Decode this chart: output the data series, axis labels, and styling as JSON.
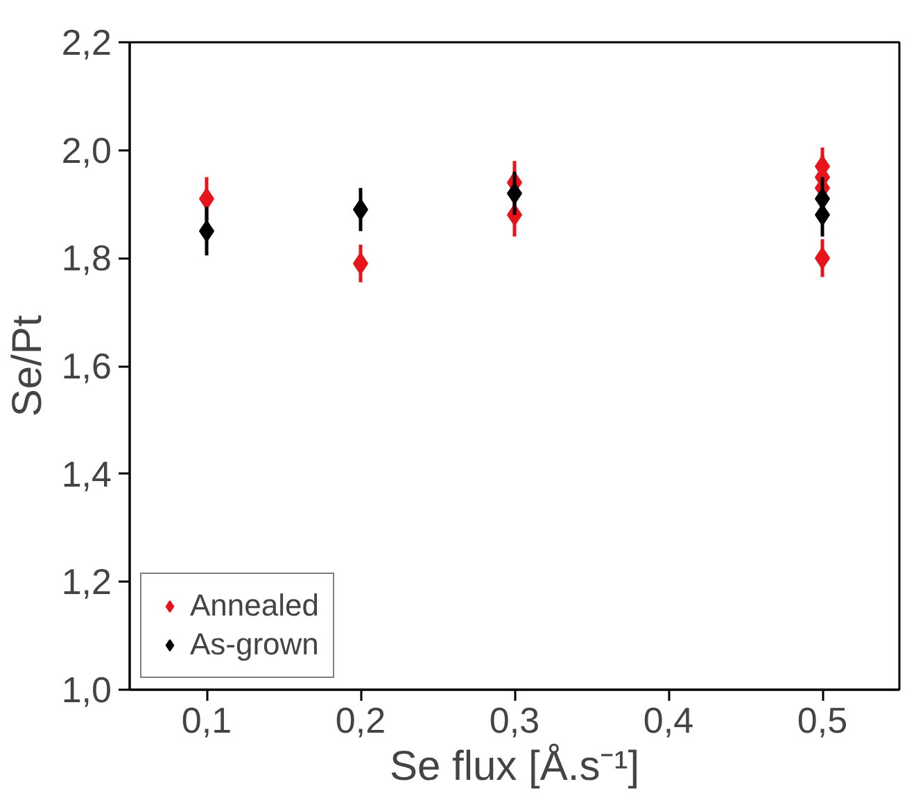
{
  "chart_data": {
    "type": "scatter",
    "xlabel": "Se flux [Å.s⁻¹]",
    "ylabel": "Se/Pt",
    "xlim": [
      0.05,
      0.55
    ],
    "ylim": [
      1.0,
      2.2
    ],
    "xticks": [
      {
        "value": 0.1,
        "label": "0,1"
      },
      {
        "value": 0.2,
        "label": "0,2"
      },
      {
        "value": 0.3,
        "label": "0,3"
      },
      {
        "value": 0.4,
        "label": "0,4"
      },
      {
        "value": 0.5,
        "label": "0,5"
      }
    ],
    "yticks": [
      {
        "value": 1.0,
        "label": "1,0"
      },
      {
        "value": 1.2,
        "label": "1,2"
      },
      {
        "value": 1.4,
        "label": "1,4"
      },
      {
        "value": 1.6,
        "label": "1,6"
      },
      {
        "value": 1.8,
        "label": "1,8"
      },
      {
        "value": 2.0,
        "label": "2,0"
      },
      {
        "value": 2.2,
        "label": "2,2"
      }
    ],
    "grid": false,
    "legend": "bottom left",
    "marker": "diamond",
    "series": [
      {
        "name": "Annealed",
        "color": "#e8141c",
        "x": [
          0.1,
          0.2,
          0.3,
          0.3,
          0.5,
          0.5,
          0.5,
          0.5
        ],
        "values": [
          1.91,
          1.79,
          1.94,
          1.88,
          1.97,
          1.95,
          1.93,
          1.8
        ],
        "errors": [
          0.04,
          0.035,
          0.04,
          0.04,
          0.035,
          0.04,
          0.04,
          0.035
        ]
      },
      {
        "name": "As-grown",
        "color": "#000000",
        "x": [
          0.1,
          0.2,
          0.3,
          0.5,
          0.5
        ],
        "values": [
          1.85,
          1.89,
          1.92,
          1.91,
          1.88
        ],
        "errors": [
          0.045,
          0.04,
          0.04,
          0.04,
          0.04
        ]
      }
    ]
  }
}
